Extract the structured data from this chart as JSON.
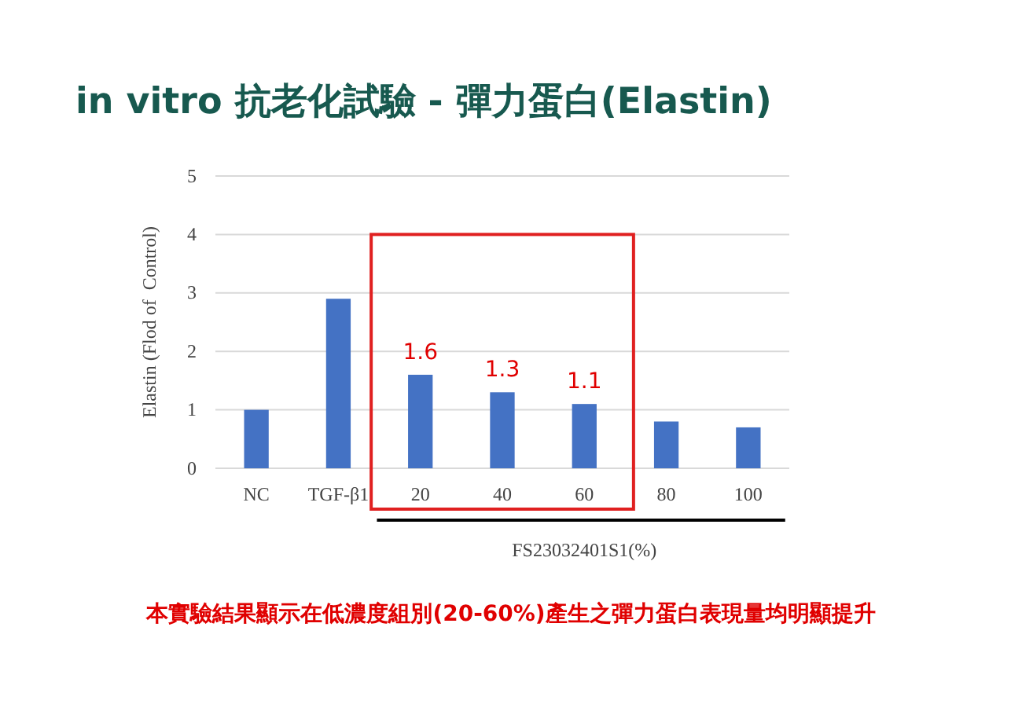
{
  "chart_data": {
    "type": "bar",
    "title": "in vitro 抗老化試驗 - 彈力蛋白(Elastin)",
    "ylabel": "Elastin (Flod of  Control)",
    "xlabel": "FS23032401S1(%)",
    "categories": [
      "NC",
      "TGF-β1",
      "20",
      "40",
      "60",
      "80",
      "100"
    ],
    "values": [
      1.0,
      2.9,
      1.6,
      1.3,
      1.1,
      0.8,
      0.7
    ],
    "color": "#4472c4",
    "value_labels": [
      null,
      null,
      "1.6",
      "1.3",
      "1.1",
      null,
      null
    ],
    "ylim": [
      0,
      5
    ],
    "yticks": [
      0,
      1,
      2,
      3,
      4,
      5
    ],
    "grid": "y",
    "annotations": [
      "本實驗結果顯示在低濃度組別(20-60%)產生之彈力蛋白表現量均明顯提升"
    ]
  }
}
